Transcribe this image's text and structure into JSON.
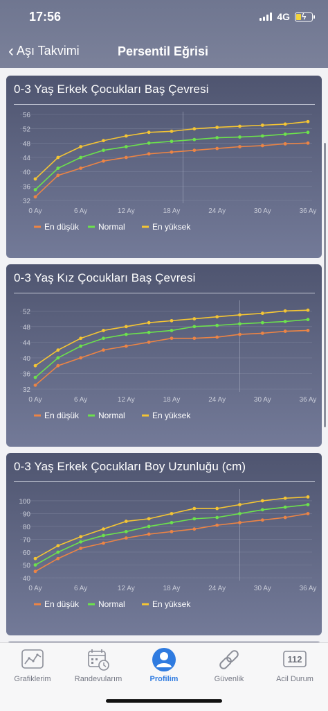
{
  "status": {
    "time": "17:56",
    "network": "4G"
  },
  "nav": {
    "back_label": "Aşı Takvimi",
    "title": "Persentil Eğrisi"
  },
  "colors": {
    "low": "#ec8445",
    "normal": "#6ce24c",
    "high": "#f4c534",
    "accent": "#2f7be0"
  },
  "cards": [
    {
      "title": "0-3 Yaş Erkek Çocukları Baş Çevresi"
    },
    {
      "title": "0-3 Yaş Kız Çocukları Baş Çevresi"
    },
    {
      "title": "0-3 Yaş Erkek Çocukları Boy Uzunluğu (cm)"
    }
  ],
  "chart_data": [
    {
      "type": "line",
      "title": "0-3 Yaş Erkek Çocukları Baş Çevresi",
      "x": [
        0,
        3,
        6,
        9,
        12,
        15,
        18,
        21,
        24,
        27,
        30,
        33,
        36
      ],
      "x_ticks": [
        "0 Ay",
        "6 Ay",
        "12 Ay",
        "18 Ay",
        "24 Ay",
        "30 Ay",
        "36 Ay"
      ],
      "y_ticks": [
        32,
        36,
        40,
        44,
        48,
        52,
        56
      ],
      "ylim": [
        32,
        56
      ],
      "grid": true,
      "legend_position": "bottom",
      "series": [
        {
          "name": "En düşük",
          "color_key": "low",
          "values": [
            33,
            39,
            41,
            43,
            44,
            45,
            45.5,
            46,
            46.5,
            47,
            47.3,
            47.8,
            48
          ]
        },
        {
          "name": "Normal",
          "color_key": "normal",
          "values": [
            35,
            41,
            44,
            46,
            47,
            48,
            48.5,
            49,
            49.5,
            49.7,
            50,
            50.5,
            51
          ]
        },
        {
          "name": "En yüksek",
          "color_key": "high",
          "values": [
            38,
            44,
            47,
            48.7,
            50,
            51,
            51.3,
            52,
            52.4,
            52.7,
            53,
            53.3,
            54
          ]
        }
      ]
    },
    {
      "type": "line",
      "title": "0-3 Yaş Kız Çocukları Baş Çevresi",
      "x": [
        0,
        3,
        6,
        9,
        12,
        15,
        18,
        21,
        24,
        27,
        30,
        33,
        36
      ],
      "x_ticks": [
        "0 Ay",
        "6 Ay",
        "12 Ay",
        "18 Ay",
        "24 Ay",
        "30 Ay",
        "36 Ay"
      ],
      "y_ticks": [
        32,
        36,
        40,
        44,
        48,
        52
      ],
      "ylim": [
        32,
        54
      ],
      "grid": true,
      "legend_position": "bottom",
      "series": [
        {
          "name": "En düşük",
          "color_key": "low",
          "values": [
            33,
            38,
            40,
            42,
            43,
            44,
            45,
            45,
            45.3,
            46,
            46.3,
            46.8,
            47
          ]
        },
        {
          "name": "Normal",
          "color_key": "normal",
          "values": [
            35,
            40,
            43,
            45,
            46,
            46.5,
            47,
            48,
            48.3,
            48.7,
            49,
            49.3,
            49.8
          ]
        },
        {
          "name": "En yüksek",
          "color_key": "high",
          "values": [
            38,
            42,
            45,
            47,
            48,
            49,
            49.5,
            50,
            50.5,
            51,
            51.4,
            52,
            52.2
          ]
        }
      ]
    },
    {
      "type": "line",
      "title": "0-3 Yaş Erkek Çocukları Boy Uzunluğu (cm)",
      "x": [
        0,
        3,
        6,
        9,
        12,
        15,
        18,
        21,
        24,
        27,
        30,
        33,
        36
      ],
      "x_ticks": [
        "0 Ay",
        "6 Ay",
        "12 Ay",
        "18 Ay",
        "24 Ay",
        "30 Ay",
        "36 Ay"
      ],
      "y_ticks": [
        40,
        50,
        60,
        70,
        80,
        90,
        100
      ],
      "ylim": [
        40,
        107
      ],
      "grid": true,
      "legend_position": "bottom",
      "series": [
        {
          "name": "En düşük",
          "color_key": "low",
          "values": [
            45,
            55,
            63,
            67,
            71,
            74,
            76,
            78,
            81,
            83,
            85,
            87,
            90
          ]
        },
        {
          "name": "Normal",
          "color_key": "normal",
          "values": [
            50,
            60,
            68,
            73,
            76,
            80,
            83,
            86,
            87,
            90,
            93,
            95,
            97
          ]
        },
        {
          "name": "En yüksek",
          "color_key": "high",
          "values": [
            55,
            65,
            72,
            78,
            84,
            86,
            90,
            94,
            94,
            97,
            100,
            102,
            103
          ]
        }
      ]
    }
  ],
  "tabbar": {
    "items": [
      {
        "label": "Grafiklerim",
        "icon": "chart-line-icon",
        "active": false
      },
      {
        "label": "Randevularım",
        "icon": "calendar-clock-icon",
        "active": false
      },
      {
        "label": "Profilim",
        "icon": "profile-icon",
        "active": true
      },
      {
        "label": "Güvenlik",
        "icon": "chain-link-icon",
        "active": false
      },
      {
        "label": "Acil Durum",
        "icon": "emergency-112-icon",
        "active": false
      }
    ],
    "emergency_number": "112"
  }
}
